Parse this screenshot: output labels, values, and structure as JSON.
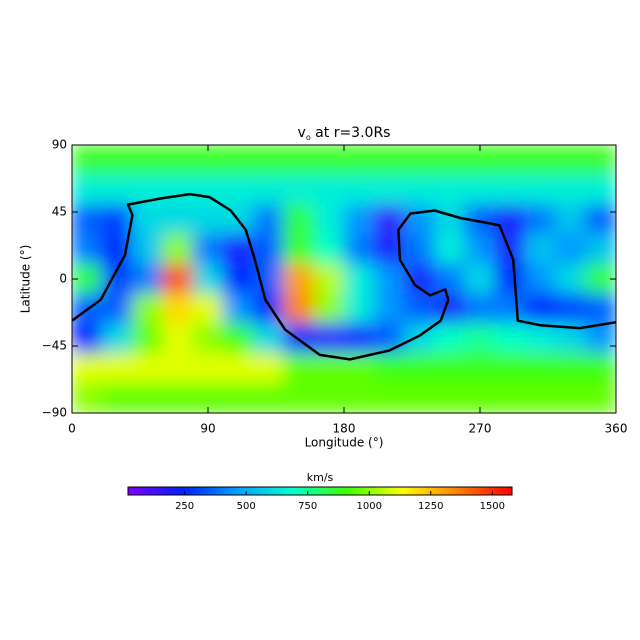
{
  "chart_data": {
    "type": "heatmap",
    "title": "v",
    "title_subscript": "o",
    "title_rest": " at r=3.0Rs",
    "x_label": "Longitude (°)",
    "y_label": "Latitude (°)",
    "xlim": [
      0,
      360
    ],
    "xticks": [
      0,
      90,
      180,
      270,
      360
    ],
    "ylim": [
      -90,
      90
    ],
    "yticks": [
      {
        "value": 90,
        "label": "90"
      },
      {
        "value": 45,
        "label": "45"
      },
      0,
      {
        "value": -45,
        "label": "−45"
      },
      {
        "value": -90,
        "label": "−90"
      }
    ],
    "x": [
      10,
      30,
      50,
      70,
      90,
      110,
      130,
      150,
      170,
      190,
      210,
      230,
      250,
      270,
      290,
      310,
      330,
      350
    ],
    "y": [
      80,
      60,
      40,
      20,
      0,
      -20,
      -40,
      -60,
      -80
    ],
    "values": [
      [
        880,
        880,
        880,
        880,
        880,
        880,
        880,
        880,
        880,
        880,
        880,
        880,
        880,
        880,
        880,
        880,
        880,
        880
      ],
      [
        650,
        650,
        650,
        650,
        650,
        650,
        650,
        650,
        650,
        650,
        650,
        650,
        650,
        650,
        650,
        650,
        650,
        650
      ],
      [
        350,
        300,
        600,
        600,
        600,
        600,
        400,
        850,
        650,
        450,
        150,
        450,
        600,
        350,
        200,
        400,
        550,
        350
      ],
      [
        400,
        250,
        550,
        1000,
        400,
        200,
        350,
        900,
        700,
        400,
        200,
        400,
        650,
        450,
        200,
        550,
        450,
        550
      ],
      [
        850,
        300,
        400,
        1450,
        600,
        250,
        350,
        1300,
        1050,
        650,
        450,
        200,
        400,
        600,
        250,
        450,
        600,
        850
      ],
      [
        350,
        350,
        1000,
        1200,
        1100,
        450,
        250,
        1350,
        1000,
        650,
        450,
        350,
        200,
        400,
        400,
        250,
        300,
        350
      ],
      [
        250,
        600,
        950,
        1100,
        1000,
        900,
        600,
        250,
        150,
        200,
        350,
        600,
        700,
        750,
        700,
        650,
        600,
        450
      ],
      [
        1100,
        1100,
        1100,
        1100,
        1100,
        1100,
        1100,
        950,
        950,
        950,
        900,
        900,
        900,
        900,
        900,
        900,
        900,
        900
      ],
      [
        1000,
        950,
        950,
        950,
        950,
        950,
        950,
        950,
        950,
        950,
        950,
        950,
        950,
        950,
        950,
        950,
        950,
        950
      ]
    ],
    "colormap": [
      "#8000ff",
      "#0020ff",
      "#00a0ff",
      "#00ffd0",
      "#40ff00",
      "#ffff00",
      "#ff8000",
      "#ff0000"
    ],
    "colorbar": {
      "label": "km/s",
      "lim": [
        20,
        1580
      ],
      "ticks": [
        250,
        500,
        750,
        1000,
        1250,
        1500
      ]
    },
    "contour": {
      "color": "#000000",
      "x": [
        0,
        19,
        35,
        40,
        37,
        58,
        78,
        91,
        105,
        115,
        121,
        128,
        141,
        164,
        184,
        210,
        230,
        244,
        249,
        247,
        237,
        227,
        217,
        216,
        224,
        240,
        257,
        273,
        283,
        292,
        295,
        310,
        336,
        360
      ],
      "y": [
        -28,
        -14,
        16,
        43,
        50,
        54,
        57,
        55,
        46,
        33,
        13,
        -14,
        -34,
        -51,
        -54,
        -48,
        -38,
        -28,
        -14,
        -7,
        -11,
        -4,
        13,
        33,
        44,
        46,
        41,
        38,
        36,
        13,
        -28,
        -31,
        -33,
        -29
      ]
    }
  }
}
